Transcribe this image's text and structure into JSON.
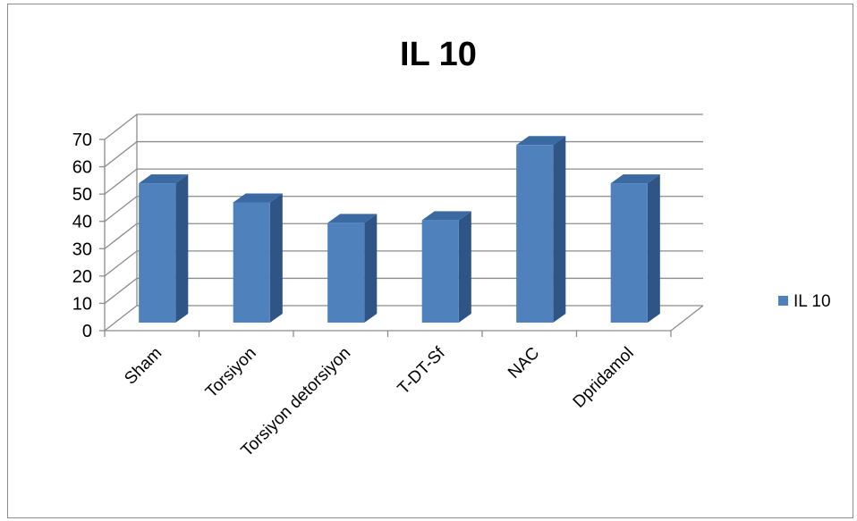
{
  "chart_data": {
    "type": "bar",
    "title": "IL 10",
    "categories": [
      "Sham",
      "Torsiyon",
      "Torsiyon detorsiyon",
      "T-DT-Sf",
      "NAC",
      "Dpridamol"
    ],
    "series": [
      {
        "name": "IL 10",
        "values": [
          51,
          44,
          36.5,
          37.5,
          65,
          51
        ]
      }
    ],
    "ylim": [
      0,
      70
    ],
    "yticks": [
      0,
      10,
      20,
      30,
      40,
      50,
      60,
      70
    ],
    "grid": true,
    "legend": "right",
    "style": "3d-column",
    "colors": {
      "bar_front": "#4f81bd",
      "bar_side": "#2f5587",
      "bar_top": "#3b6aa3",
      "grid": "#8c8c8c"
    }
  }
}
